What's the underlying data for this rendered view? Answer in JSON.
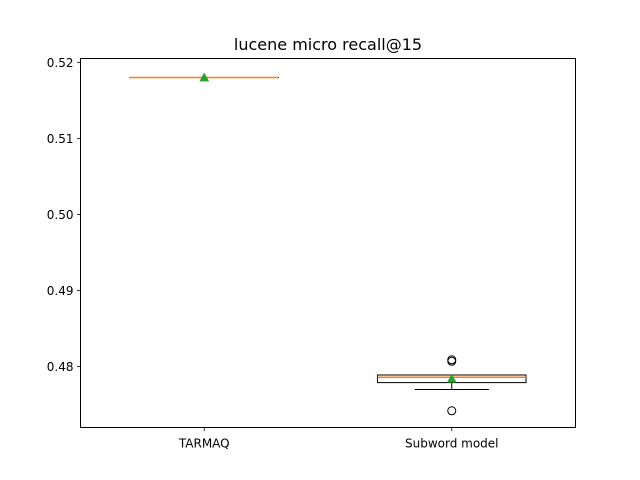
{
  "chart_data": {
    "type": "box",
    "title": "lucene micro recall@15",
    "xlabel": "",
    "ylabel": "",
    "ylim": [
      0.472,
      0.5205
    ],
    "yticks": [
      0.48,
      0.49,
      0.5,
      0.51,
      0.52
    ],
    "ytick_labels": [
      "0.48",
      "0.49",
      "0.50",
      "0.51",
      "0.52"
    ],
    "categories": [
      "TARMAQ",
      "Subword model"
    ],
    "boxes": [
      {
        "category": "TARMAQ",
        "q1": 0.518,
        "median": 0.518,
        "q3": 0.518,
        "whisker_low": 0.518,
        "whisker_high": 0.518,
        "mean": 0.518,
        "fliers": []
      },
      {
        "category": "Subword model",
        "q1": 0.4779,
        "median": 0.4786,
        "q3": 0.4789,
        "whisker_low": 0.477,
        "whisker_high": 0.4789,
        "mean": 0.4784,
        "fliers": [
          0.4742,
          0.4807,
          0.4809
        ]
      }
    ],
    "grid": false,
    "legend": "none",
    "colors": {
      "box": "#000000",
      "median": "#ff7f0e",
      "mean_marker": "#2ca02c",
      "flier": "#000000"
    }
  }
}
